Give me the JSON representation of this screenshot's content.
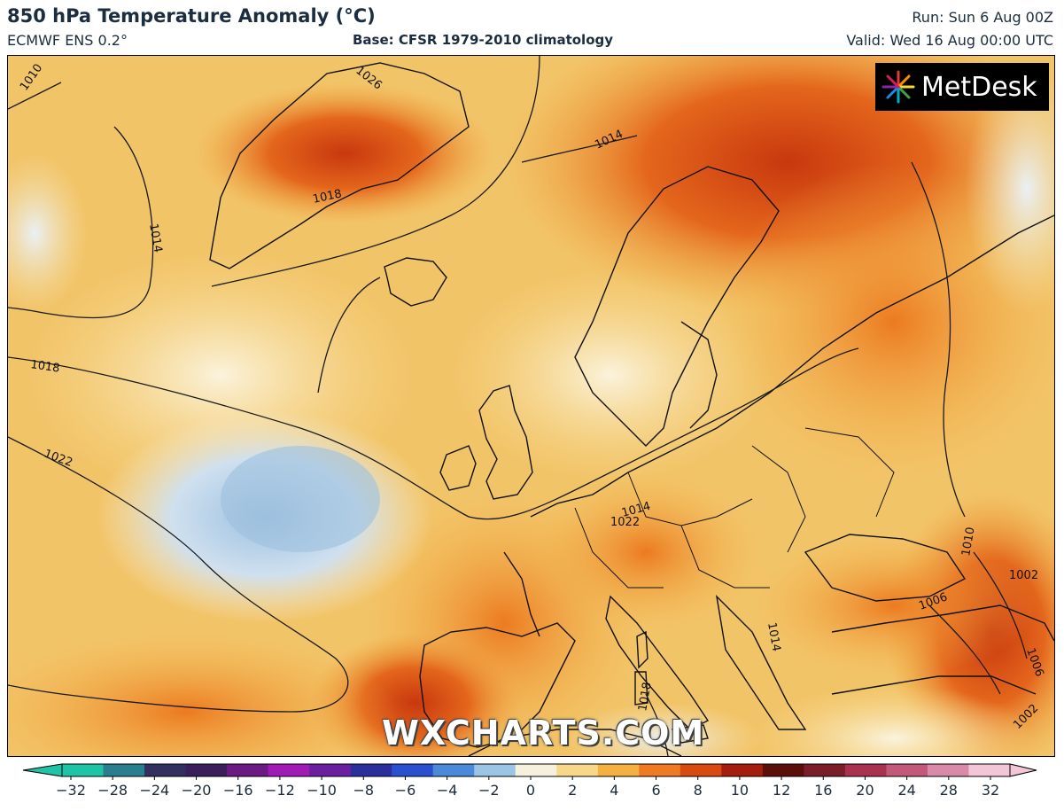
{
  "header": {
    "title": "850 hPa Temperature Anomaly (°C)",
    "model": "ECMWF ENS 0.2°",
    "base": "Base: CFSR 1979-2010 climatology",
    "run": "Run: Sun 6 Aug 00Z",
    "valid": "Valid: Wed 16 Aug 00:00 UTC"
  },
  "logo": {
    "text": "MetDesk",
    "icon": "metdesk-logo-icon"
  },
  "watermark": "WXCHARTS.COM",
  "isobars": [
    "1010",
    "1014",
    "1018",
    "1014",
    "1018",
    "1022",
    "1026",
    "1014",
    "1010",
    "1002",
    "1006",
    "1006",
    "1002",
    "1014",
    "1018",
    "1022"
  ],
  "colorbar": {
    "ticks": [
      "−32",
      "−28",
      "−24",
      "−20",
      "−16",
      "−12",
      "−10",
      "−8",
      "−6",
      "−4",
      "−2",
      "0",
      "2",
      "4",
      "6",
      "8",
      "10",
      "12",
      "16",
      "20",
      "24",
      "28",
      "32"
    ],
    "colors": [
      "#1fc4a6",
      "#2a7f8f",
      "#332f5e",
      "#3a1f5c",
      "#6c1a84",
      "#a11ab8",
      "#6a1fa0",
      "#2b2f9e",
      "#2a4fd1",
      "#4a8ad8",
      "#9cc4e4",
      "#f6f1de",
      "#f7d88a",
      "#f5b042",
      "#ef7a22",
      "#d84a10",
      "#a51d0d",
      "#5c0f0a",
      "#7a1f2a",
      "#a8324f",
      "#c2587a",
      "#d98aa8",
      "#f2c6d6"
    ]
  }
}
